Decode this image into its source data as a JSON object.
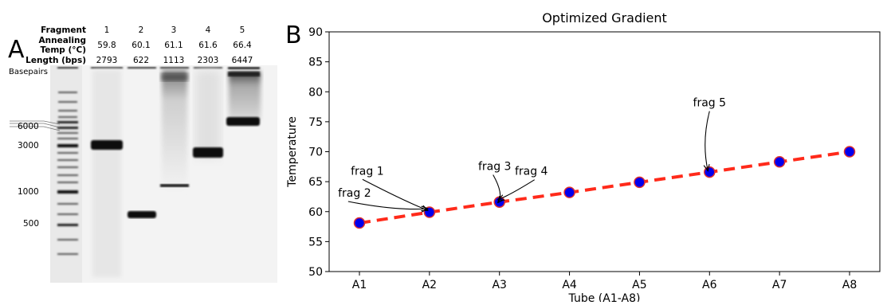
{
  "panel_a": {
    "letter": "A",
    "header_labels": [
      "Fragment",
      "Annealing",
      "Temp (°C)",
      "Length (bps)"
    ],
    "basepairs_label": "Basepairs",
    "lanes": [
      {
        "fragment": "1",
        "temp": "59.8",
        "length": "2793"
      },
      {
        "fragment": "2",
        "temp": "60.1",
        "length": "622"
      },
      {
        "fragment": "3",
        "temp": "61.1",
        "length": "1113"
      },
      {
        "fragment": "4",
        "temp": "61.6",
        "length": "2303"
      },
      {
        "fragment": "5",
        "temp": "66.4",
        "length": "6447"
      }
    ],
    "ladder_labels": [
      "6000",
      "3000",
      "1000",
      "500"
    ]
  },
  "panel_b": {
    "letter": "B"
  },
  "chart_data": {
    "type": "line",
    "title": "Optimized Gradient",
    "xlabel": "Tube (A1-A8)",
    "ylabel": "Temperature",
    "categories": [
      "A1",
      "A2",
      "A3",
      "A4",
      "A5",
      "A6",
      "A7",
      "A8"
    ],
    "values": [
      58.1,
      59.9,
      61.6,
      63.2,
      64.9,
      66.6,
      68.3,
      70.0
    ],
    "ylim": [
      50,
      90
    ],
    "yticks": [
      50,
      55,
      60,
      65,
      70,
      75,
      80,
      85,
      90
    ],
    "grid": false,
    "line_color": "#ff2a1a",
    "marker_color": "#0000ee",
    "marker_edge_color": "#e03030",
    "annotations": [
      {
        "text": "frag 1",
        "x": "A2",
        "y": 59.8
      },
      {
        "text": "frag 2",
        "x": "A2",
        "y": 60.1
      },
      {
        "text": "frag 3",
        "x": "A3",
        "y": 61.1
      },
      {
        "text": "frag 4",
        "x": "A3",
        "y": 61.6
      },
      {
        "text": "frag 5",
        "x": "A6",
        "y": 66.4
      }
    ]
  }
}
